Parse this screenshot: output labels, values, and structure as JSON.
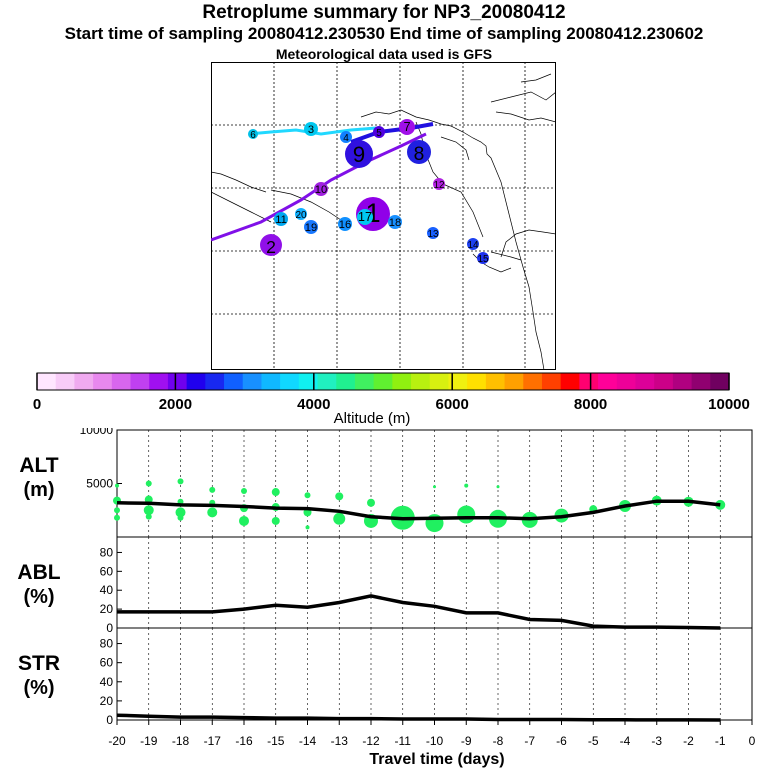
{
  "header": {
    "title": "Retroplume summary for NP3_20080412",
    "sampling": "Start time of sampling 20080412.230530     End time of sampling 20080412.230602",
    "met": "Meteorological data used is GFS"
  },
  "colorbar": {
    "label": "Altitude (m)",
    "ticks": [
      "0",
      "2000",
      "4000",
      "6000",
      "8000",
      "10000"
    ],
    "colors": [
      "#ffe6ff",
      "#f8ccf8",
      "#f0aaf0",
      "#e888ee",
      "#d866ee",
      "#c040f0",
      "#a010f0",
      "#7000ee",
      "#2000ee",
      "#1828f0",
      "#1060ff",
      "#1890ff",
      "#10b8ff",
      "#10d8ff",
      "#10f0f0",
      "#20f0c0",
      "#20f090",
      "#40f060",
      "#60f030",
      "#90f010",
      "#b8f010",
      "#d8f010",
      "#f0f010",
      "#ffe000",
      "#ffc000",
      "#ffa000",
      "#ff7000",
      "#ff4000",
      "#ff0000",
      "#ff0070",
      "#ff0099",
      "#ee0099",
      "#dd0099",
      "#cc0088",
      "#b00080",
      "#900070",
      "#700060"
    ]
  },
  "map": {
    "icons": [
      "map-grid-icon",
      "coastline-icon"
    ],
    "clusters": [
      {
        "label": "1",
        "color": "#9000e8"
      },
      {
        "label": "2",
        "color": "#9010e8"
      },
      {
        "label": "3",
        "color": "#00c8f0"
      },
      {
        "label": "4",
        "color": "#1080ff"
      },
      {
        "label": "5",
        "color": "#5000e0"
      },
      {
        "label": "6",
        "color": "#00c0e8"
      },
      {
        "label": "7",
        "color": "#a010e8"
      },
      {
        "label": "8",
        "color": "#2020e0"
      },
      {
        "label": "9",
        "color": "#3010e0"
      },
      {
        "label": "10",
        "color": "#a020e0"
      },
      {
        "label": "11",
        "color": "#00a8f0"
      },
      {
        "label": "12",
        "color": "#b020e0"
      },
      {
        "label": "13",
        "color": "#1860ff"
      },
      {
        "label": "14",
        "color": "#1c40f0"
      },
      {
        "label": "15",
        "color": "#1c30ee"
      },
      {
        "label": "16",
        "color": "#1090ff"
      },
      {
        "label": "17",
        "color": "#00c8f0"
      },
      {
        "label": "18",
        "color": "#1890ff"
      },
      {
        "label": "19",
        "color": "#1878ff"
      },
      {
        "label": "20",
        "color": "#10b0ff"
      }
    ]
  },
  "chart_data": [
    {
      "type": "scatter",
      "panel": "ALT",
      "title": "ALT",
      "unit": "(m)",
      "ylim": [
        0,
        10000
      ],
      "yticks": [
        "5000",
        "10000"
      ],
      "xlim": [
        -20,
        0
      ],
      "mean_line": {
        "x": [
          -20,
          -19,
          -18,
          -17,
          -16,
          -15,
          -14,
          -13,
          -12,
          -11,
          -10,
          -9,
          -8,
          -7,
          -6,
          -5,
          -4,
          -3,
          -2,
          -1
        ],
        "y": [
          3200,
          3150,
          3000,
          2950,
          2850,
          2700,
          2650,
          2400,
          1900,
          1700,
          1750,
          1800,
          1800,
          1700,
          1900,
          2300,
          2900,
          3350,
          3350,
          3000
        ]
      },
      "points": [
        {
          "x": -20,
          "y": 4800,
          "r": 2
        },
        {
          "x": -20,
          "y": 3400,
          "r": 4
        },
        {
          "x": -20,
          "y": 2500,
          "r": 3
        },
        {
          "x": -20,
          "y": 1800,
          "r": 3
        },
        {
          "x": -19,
          "y": 5000,
          "r": 3
        },
        {
          "x": -19,
          "y": 3500,
          "r": 4
        },
        {
          "x": -19,
          "y": 2500,
          "r": 5
        },
        {
          "x": -19,
          "y": 1900,
          "r": 3
        },
        {
          "x": -18,
          "y": 5200,
          "r": 3
        },
        {
          "x": -18,
          "y": 3300,
          "r": 3
        },
        {
          "x": -18,
          "y": 2300,
          "r": 5
        },
        {
          "x": -18,
          "y": 1800,
          "r": 3
        },
        {
          "x": -17,
          "y": 4400,
          "r": 3
        },
        {
          "x": -17,
          "y": 3200,
          "r": 3
        },
        {
          "x": -17,
          "y": 2300,
          "r": 5
        },
        {
          "x": -16,
          "y": 4300,
          "r": 3
        },
        {
          "x": -16,
          "y": 2700,
          "r": 4
        },
        {
          "x": -16,
          "y": 1500,
          "r": 5
        },
        {
          "x": -15,
          "y": 4200,
          "r": 4
        },
        {
          "x": -15,
          "y": 2800,
          "r": 4
        },
        {
          "x": -15,
          "y": 1500,
          "r": 4
        },
        {
          "x": -14,
          "y": 3900,
          "r": 3
        },
        {
          "x": -14,
          "y": 2300,
          "r": 4
        },
        {
          "x": -14,
          "y": 900,
          "r": 2
        },
        {
          "x": -13,
          "y": 3800,
          "r": 4
        },
        {
          "x": -13,
          "y": 1700,
          "r": 6
        },
        {
          "x": -12,
          "y": 3200,
          "r": 4
        },
        {
          "x": -12,
          "y": 1500,
          "r": 7
        },
        {
          "x": -11,
          "y": 1800,
          "r": 12
        },
        {
          "x": -10,
          "y": 4700,
          "r": 1.5
        },
        {
          "x": -10,
          "y": 1300,
          "r": 9
        },
        {
          "x": -9,
          "y": 4800,
          "r": 2
        },
        {
          "x": -9,
          "y": 2100,
          "r": 9
        },
        {
          "x": -8,
          "y": 4700,
          "r": 1.5
        },
        {
          "x": -8,
          "y": 1700,
          "r": 9
        },
        {
          "x": -7,
          "y": 1600,
          "r": 8
        },
        {
          "x": -6,
          "y": 2000,
          "r": 7
        },
        {
          "x": -5,
          "y": 2600,
          "r": 4
        },
        {
          "x": -4,
          "y": 2900,
          "r": 6
        },
        {
          "x": -3,
          "y": 3400,
          "r": 5
        },
        {
          "x": -2,
          "y": 3300,
          "r": 5
        },
        {
          "x": -1,
          "y": 3000,
          "r": 5
        }
      ]
    },
    {
      "type": "line",
      "panel": "ABL",
      "title": "ABL",
      "unit": "(%)",
      "ylim": [
        0,
        90
      ],
      "yticks": [
        "0",
        "20",
        "40",
        "60",
        "80"
      ],
      "x": [
        -20,
        -19,
        -18,
        -17,
        -16,
        -15,
        -14,
        -13,
        -12,
        -11,
        -10,
        -9,
        -8,
        -7,
        -6,
        -5,
        -4,
        -3,
        -2,
        -1
      ],
      "y": [
        17,
        17,
        17,
        17,
        20,
        24,
        22,
        27,
        34,
        27,
        23,
        16,
        16,
        9,
        8,
        2,
        1,
        1,
        0.5,
        0
      ]
    },
    {
      "type": "line",
      "panel": "STR",
      "title": "STR",
      "unit": "(%)",
      "ylim": [
        0,
        90
      ],
      "yticks": [
        "0",
        "20",
        "40",
        "60",
        "80"
      ],
      "x": [
        -20,
        -19,
        -18,
        -17,
        -16,
        -15,
        -14,
        -13,
        -12,
        -11,
        -10,
        -9,
        -8,
        -7,
        -6,
        -5,
        -4,
        -3,
        -2,
        -1
      ],
      "y": [
        5,
        4,
        3,
        3,
        2.5,
        2,
        2,
        1.5,
        1.5,
        1,
        1,
        1,
        0.5,
        0.5,
        0.5,
        0.3,
        0.2,
        0.1,
        0.1,
        0
      ]
    }
  ],
  "xaxis": {
    "ticks": [
      "-20",
      "-19",
      "-18",
      "-17",
      "-16",
      "-15",
      "-14",
      "-13",
      "-12",
      "-11",
      "-10",
      "-9",
      "-8",
      "-7",
      "-6",
      "-5",
      "-4",
      "-3",
      "-2",
      "-1",
      "0"
    ],
    "label": "Travel time (days)"
  },
  "scatter_color": "#20f060",
  "line_color": "#000000"
}
